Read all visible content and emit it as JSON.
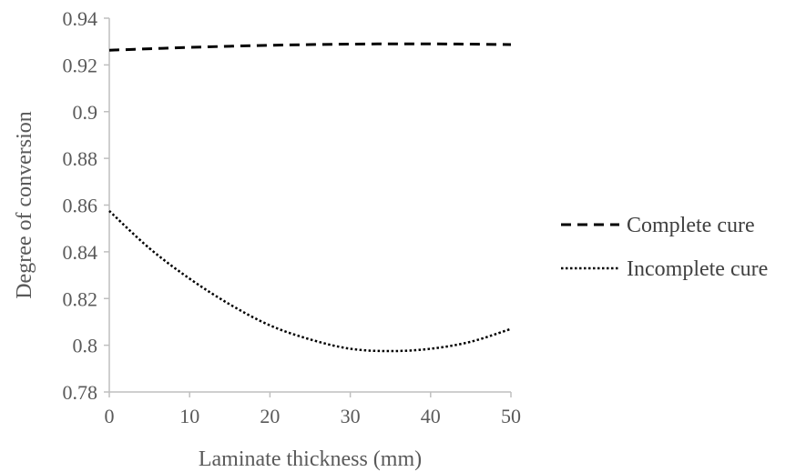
{
  "chart_data": {
    "type": "line",
    "xlabel": "Laminate thickness (mm)",
    "ylabel": "Degree of conversion",
    "xlim": [
      0,
      50
    ],
    "ylim": [
      0.78,
      0.94
    ],
    "x_ticks": [
      "0",
      "10",
      "20",
      "30",
      "40",
      "50"
    ],
    "y_ticks": [
      "0.78",
      "0.8",
      "0.82",
      "0.84",
      "0.86",
      "0.88",
      "0.9",
      "0.92",
      "0.94"
    ],
    "grid": false,
    "legend_position": "right",
    "series": [
      {
        "name": "Complete cure",
        "line_style": "dashed",
        "color": "#000000",
        "x": [
          0,
          5,
          10,
          15,
          20,
          25,
          30,
          35,
          40,
          45,
          50
        ],
        "values": [
          0.9263,
          0.9269,
          0.9275,
          0.928,
          0.9284,
          0.9287,
          0.9289,
          0.929,
          0.929,
          0.9289,
          0.9287
        ]
      },
      {
        "name": "Incomplete cure",
        "line_style": "dotted",
        "color": "#000000",
        "x": [
          0,
          5,
          10,
          15,
          20,
          25,
          30,
          35,
          40,
          45,
          50
        ],
        "values": [
          0.8575,
          0.8415,
          0.8285,
          0.8175,
          0.8085,
          0.8025,
          0.7985,
          0.7975,
          0.7985,
          0.8015,
          0.807
        ]
      }
    ]
  }
}
